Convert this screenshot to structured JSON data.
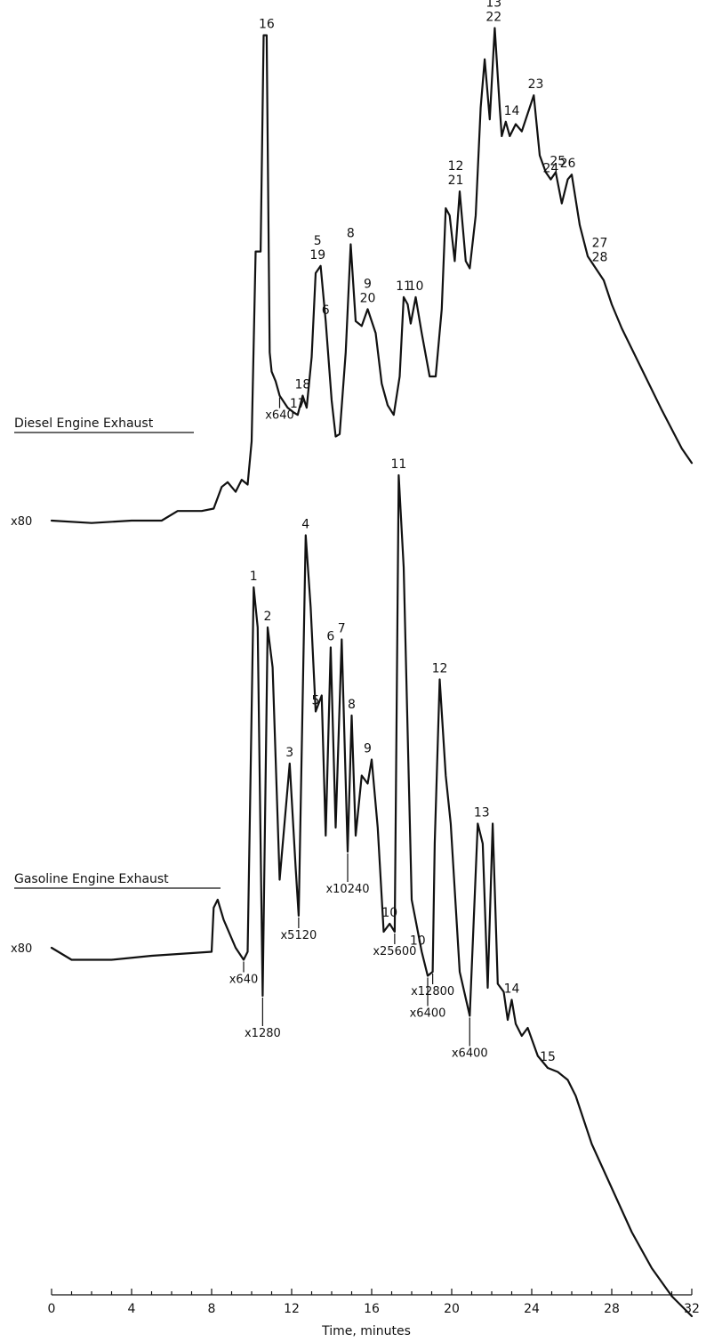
{
  "chart_data": {
    "type": "line",
    "xlabel": "Time, minutes",
    "xlim": [
      0,
      32
    ],
    "x_ticks": [
      "0",
      "4",
      "8",
      "12",
      "16",
      "20",
      "24",
      "28",
      "32"
    ],
    "series": [
      {
        "name": "Diesel Engine Exhaust",
        "baseline_label": "x80",
        "points": [
          [
            0,
            0.0
          ],
          [
            2,
            -0.01
          ],
          [
            4,
            0.0
          ],
          [
            5.5,
            0.0
          ],
          [
            6.3,
            0.04
          ],
          [
            7.5,
            0.04
          ],
          [
            8.1,
            0.05
          ],
          [
            8.5,
            0.14
          ],
          [
            8.8,
            0.16
          ],
          [
            9.2,
            0.12
          ],
          [
            9.5,
            0.17
          ],
          [
            9.8,
            0.15
          ],
          [
            10.0,
            0.33
          ],
          [
            10.2,
            1.12
          ],
          [
            10.45,
            1.12
          ],
          [
            10.6,
            2.02
          ],
          [
            10.75,
            2.02
          ],
          [
            10.9,
            0.7
          ],
          [
            11.0,
            0.62
          ],
          [
            11.2,
            0.58
          ],
          [
            11.4,
            0.52
          ],
          [
            11.8,
            0.47
          ],
          [
            12.1,
            0.45
          ],
          [
            12.3,
            0.44
          ],
          [
            12.55,
            0.52
          ],
          [
            12.75,
            0.47
          ],
          [
            13.0,
            0.68
          ],
          [
            13.2,
            1.03
          ],
          [
            13.45,
            1.06
          ],
          [
            13.7,
            0.83
          ],
          [
            14.0,
            0.5
          ],
          [
            14.2,
            0.35
          ],
          [
            14.4,
            0.36
          ],
          [
            14.7,
            0.7
          ],
          [
            14.95,
            1.15
          ],
          [
            15.2,
            0.83
          ],
          [
            15.5,
            0.81
          ],
          [
            15.8,
            0.88
          ],
          [
            16.2,
            0.78
          ],
          [
            16.5,
            0.57
          ],
          [
            16.8,
            0.48
          ],
          [
            17.1,
            0.44
          ],
          [
            17.4,
            0.6
          ],
          [
            17.6,
            0.93
          ],
          [
            17.8,
            0.9
          ],
          [
            17.95,
            0.82
          ],
          [
            18.2,
            0.93
          ],
          [
            18.5,
            0.78
          ],
          [
            18.9,
            0.6
          ],
          [
            19.2,
            0.6
          ],
          [
            19.5,
            0.88
          ],
          [
            19.7,
            1.3
          ],
          [
            19.9,
            1.27
          ],
          [
            20.15,
            1.08
          ],
          [
            20.4,
            1.37
          ],
          [
            20.7,
            1.08
          ],
          [
            20.9,
            1.05
          ],
          [
            21.2,
            1.27
          ],
          [
            21.45,
            1.72
          ],
          [
            21.65,
            1.92
          ],
          [
            21.9,
            1.67
          ],
          [
            22.15,
            2.05
          ],
          [
            22.4,
            1.72
          ],
          [
            22.5,
            1.6
          ],
          [
            22.7,
            1.66
          ],
          [
            22.9,
            1.6
          ],
          [
            23.2,
            1.65
          ],
          [
            23.5,
            1.62
          ],
          [
            23.9,
            1.72
          ],
          [
            24.1,
            1.77
          ],
          [
            24.4,
            1.52
          ],
          [
            24.7,
            1.45
          ],
          [
            24.95,
            1.42
          ],
          [
            25.2,
            1.45
          ],
          [
            25.5,
            1.32
          ],
          [
            25.8,
            1.42
          ],
          [
            26.0,
            1.44
          ],
          [
            26.4,
            1.23
          ],
          [
            26.8,
            1.1
          ],
          [
            27.2,
            1.05
          ],
          [
            27.6,
            1.0
          ],
          [
            28.0,
            0.9
          ],
          [
            28.5,
            0.8
          ],
          [
            29.5,
            0.63
          ],
          [
            30.5,
            0.46
          ],
          [
            31.5,
            0.3
          ],
          [
            32.0,
            0.24
          ]
        ],
        "peak_labels": [
          {
            "x": 10.75,
            "y": 2.02,
            "lines": [
              "16"
            ]
          },
          {
            "x": 12.3,
            "y": 0.44,
            "lines": [
              "17"
            ]
          },
          {
            "x": 12.55,
            "y": 0.52,
            "lines": [
              "18"
            ]
          },
          {
            "x": 13.3,
            "y": 1.06,
            "lines": [
              "5",
              "19"
            ]
          },
          {
            "x": 13.7,
            "y": 0.83,
            "lines": [
              "6"
            ]
          },
          {
            "x": 14.95,
            "y": 1.15,
            "lines": [
              "8"
            ]
          },
          {
            "x": 15.8,
            "y": 0.88,
            "lines": [
              "9",
              "20"
            ]
          },
          {
            "x": 17.6,
            "y": 0.93,
            "lines": [
              "11"
            ]
          },
          {
            "x": 18.2,
            "y": 0.93,
            "lines": [
              "10"
            ]
          },
          {
            "x": 20.2,
            "y": 1.37,
            "lines": [
              "12",
              "21"
            ]
          },
          {
            "x": 22.1,
            "y": 2.05,
            "lines": [
              "13",
              "22"
            ]
          },
          {
            "x": 23.0,
            "y": 1.66,
            "lines": [
              "14"
            ]
          },
          {
            "x": 24.2,
            "y": 1.77,
            "lines": [
              "23"
            ]
          },
          {
            "x": 24.95,
            "y": 1.42,
            "lines": [
              "24"
            ]
          },
          {
            "x": 25.3,
            "y": 1.45,
            "lines": [
              "25"
            ]
          },
          {
            "x": 25.8,
            "y": 1.44,
            "lines": [
              "26"
            ]
          },
          {
            "x": 27.4,
            "y": 1.05,
            "lines": [
              "27",
              "28"
            ]
          }
        ],
        "attenuation_labels": [
          {
            "x": 11.4,
            "text": "x640"
          }
        ]
      },
      {
        "name": "Gasoline Engine Exhaust",
        "baseline_label": "x80",
        "points": [
          [
            0,
            0.0
          ],
          [
            1,
            -0.03
          ],
          [
            3,
            -0.03
          ],
          [
            5,
            -0.02
          ],
          [
            8.0,
            -0.01
          ],
          [
            8.1,
            0.1
          ],
          [
            8.3,
            0.12
          ],
          [
            8.6,
            0.07
          ],
          [
            9.2,
            0.0
          ],
          [
            9.6,
            -0.03
          ],
          [
            9.8,
            -0.01
          ],
          [
            10.1,
            0.9
          ],
          [
            10.3,
            0.8
          ],
          [
            10.55,
            -0.12
          ],
          [
            10.8,
            0.8
          ],
          [
            11.05,
            0.7
          ],
          [
            11.4,
            0.17
          ],
          [
            11.9,
            0.46
          ],
          [
            12.2,
            0.2
          ],
          [
            12.35,
            0.08
          ],
          [
            12.7,
            1.03
          ],
          [
            12.95,
            0.85
          ],
          [
            13.2,
            0.59
          ],
          [
            13.5,
            0.63
          ],
          [
            13.7,
            0.28
          ],
          [
            13.95,
            0.75
          ],
          [
            14.2,
            0.3
          ],
          [
            14.5,
            0.77
          ],
          [
            14.8,
            0.24
          ],
          [
            15.0,
            0.58
          ],
          [
            15.2,
            0.28
          ],
          [
            15.5,
            0.43
          ],
          [
            15.8,
            0.41
          ],
          [
            16.0,
            0.47
          ],
          [
            16.3,
            0.3
          ],
          [
            16.6,
            0.04
          ],
          [
            16.9,
            0.06
          ],
          [
            17.15,
            0.04
          ],
          [
            17.35,
            1.18
          ],
          [
            17.6,
            0.95
          ],
          [
            18.0,
            0.12
          ],
          [
            18.5,
            -0.01
          ],
          [
            18.8,
            -0.07
          ],
          [
            19.05,
            -0.06
          ],
          [
            19.15,
            0.26
          ],
          [
            19.4,
            0.67
          ],
          [
            19.7,
            0.43
          ],
          [
            19.95,
            0.31
          ],
          [
            20.4,
            -0.06
          ],
          [
            20.9,
            -0.17
          ],
          [
            21.3,
            0.31
          ],
          [
            21.55,
            0.26
          ],
          [
            21.8,
            -0.1
          ],
          [
            22.05,
            0.31
          ],
          [
            22.3,
            -0.09
          ],
          [
            22.6,
            -0.11
          ],
          [
            22.8,
            -0.18
          ],
          [
            23.0,
            -0.13
          ],
          [
            23.2,
            -0.19
          ],
          [
            23.5,
            -0.22
          ],
          [
            23.8,
            -0.2
          ],
          [
            24.3,
            -0.27
          ],
          [
            24.8,
            -0.3
          ],
          [
            25.3,
            -0.31
          ],
          [
            25.8,
            -0.33
          ],
          [
            26.2,
            -0.37
          ],
          [
            27.0,
            -0.49
          ],
          [
            28.0,
            -0.6
          ],
          [
            29.0,
            -0.71
          ],
          [
            30.0,
            -0.8
          ],
          [
            31.0,
            -0.87
          ],
          [
            32.0,
            -0.92
          ]
        ],
        "peak_labels": [
          {
            "x": 10.1,
            "y": 0.9,
            "lines": [
              "1"
            ]
          },
          {
            "x": 10.8,
            "y": 0.8,
            "lines": [
              "2"
            ]
          },
          {
            "x": 11.9,
            "y": 0.46,
            "lines": [
              "3"
            ]
          },
          {
            "x": 12.7,
            "y": 1.03,
            "lines": [
              "4"
            ]
          },
          {
            "x": 13.2,
            "y": 0.59,
            "lines": [
              "5"
            ]
          },
          {
            "x": 13.95,
            "y": 0.75,
            "lines": [
              "6"
            ]
          },
          {
            "x": 14.5,
            "y": 0.77,
            "lines": [
              "7"
            ]
          },
          {
            "x": 15.0,
            "y": 0.58,
            "lines": [
              "8"
            ]
          },
          {
            "x": 15.8,
            "y": 0.47,
            "lines": [
              "9"
            ]
          },
          {
            "x": 16.9,
            "y": 0.06,
            "lines": [
              "10"
            ]
          },
          {
            "x": 17.35,
            "y": 1.18,
            "lines": [
              "11"
            ]
          },
          {
            "x": 18.3,
            "y": -0.01,
            "lines": [
              "10"
            ]
          },
          {
            "x": 19.4,
            "y": 0.67,
            "lines": [
              "12"
            ]
          },
          {
            "x": 21.5,
            "y": 0.31,
            "lines": [
              "13"
            ]
          },
          {
            "x": 23.0,
            "y": -0.13,
            "lines": [
              "14"
            ]
          },
          {
            "x": 24.8,
            "y": -0.3,
            "lines": [
              "15"
            ]
          }
        ],
        "attenuation_labels": [
          {
            "x": 9.6,
            "text": "x640"
          },
          {
            "x": 10.55,
            "text": "x1280"
          },
          {
            "x": 12.35,
            "text": "x5120"
          },
          {
            "x": 14.8,
            "text": "x10240"
          },
          {
            "x": 17.15,
            "text": "x25600"
          },
          {
            "x": 18.8,
            "text": "x6400"
          },
          {
            "x": 19.05,
            "text": "x12800"
          },
          {
            "x": 20.9,
            "text": "x6400"
          }
        ]
      }
    ]
  }
}
